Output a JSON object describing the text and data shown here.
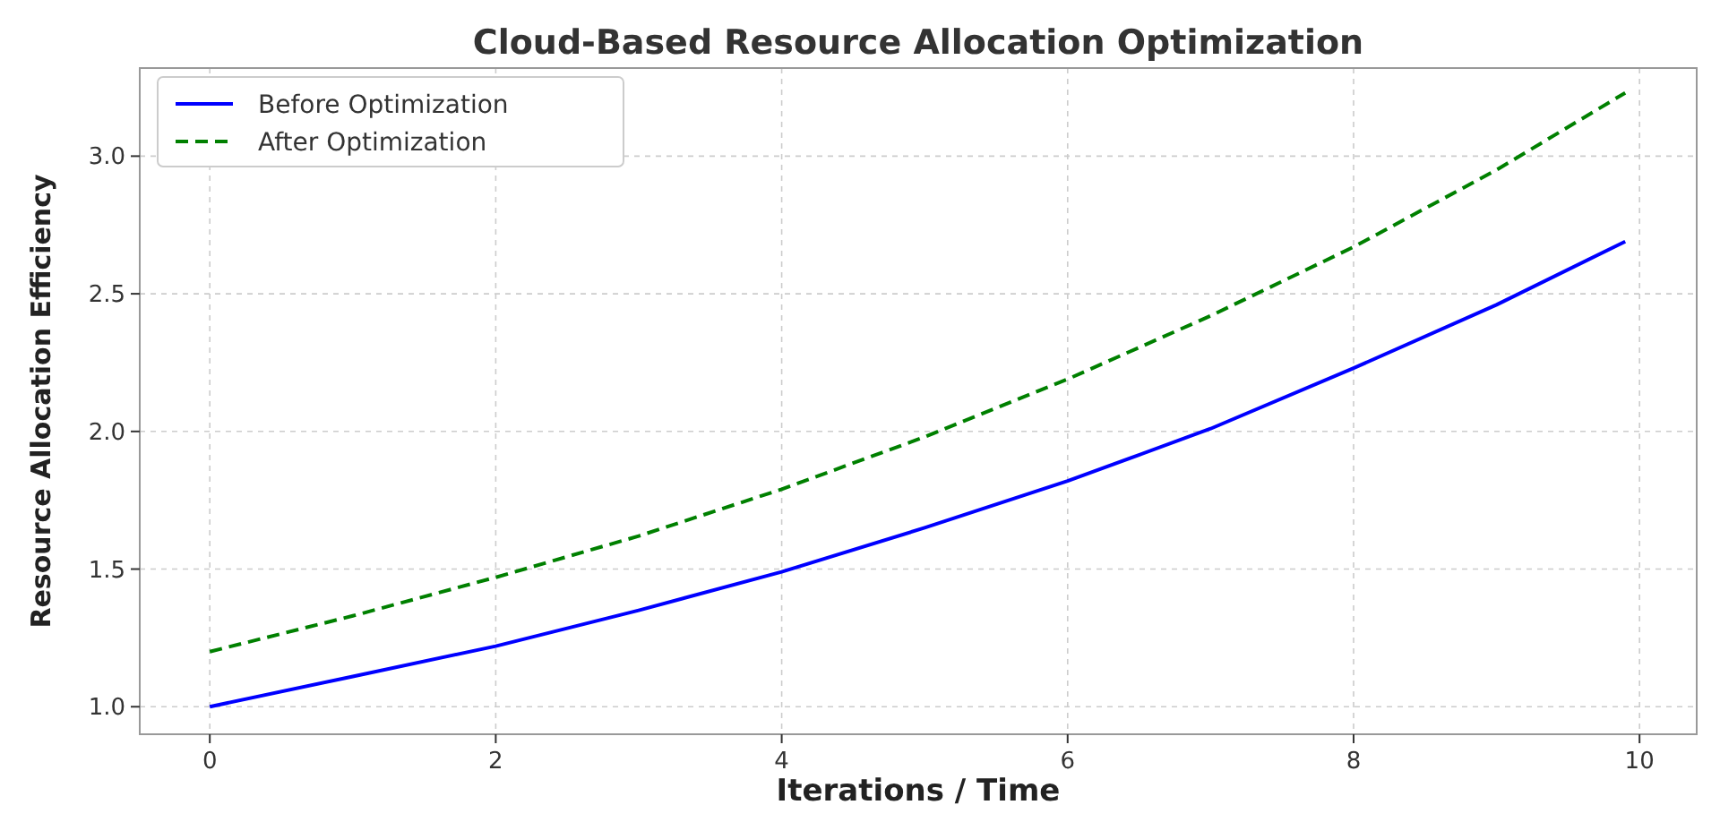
{
  "chart_data": {
    "type": "line",
    "title": "Cloud-Based Resource Allocation Optimization",
    "xlabel": "Iterations / Time",
    "ylabel": "Resource Allocation Efficiency",
    "x": [
      0,
      1,
      2,
      3,
      4,
      5,
      6,
      7,
      8,
      9,
      9.9
    ],
    "series": [
      {
        "name": "Before Optimization",
        "color": "#0000ff",
        "line_style": "solid",
        "values": [
          1.0,
          1.11,
          1.22,
          1.35,
          1.49,
          1.65,
          1.82,
          2.01,
          2.23,
          2.46,
          2.69
        ]
      },
      {
        "name": "After Optimization",
        "color": "#008000",
        "line_style": "dashed",
        "values": [
          1.2,
          1.33,
          1.47,
          1.62,
          1.79,
          1.98,
          2.19,
          2.42,
          2.67,
          2.95,
          3.23
        ]
      }
    ],
    "xlim": [
      -0.49,
      10.4
    ],
    "ylim": [
      0.9,
      3.32
    ],
    "xticks": [
      0,
      2,
      4,
      6,
      8,
      10
    ],
    "yticks": [
      {
        "value": 1,
        "label": "1.0"
      },
      {
        "value": 1.5,
        "label": "1.5"
      },
      {
        "value": 2,
        "label": "2.0"
      },
      {
        "value": 2.5,
        "label": "2.5"
      },
      {
        "value": 3,
        "label": "3.0"
      }
    ],
    "grid": true,
    "legend": "top left",
    "marker": "none"
  }
}
